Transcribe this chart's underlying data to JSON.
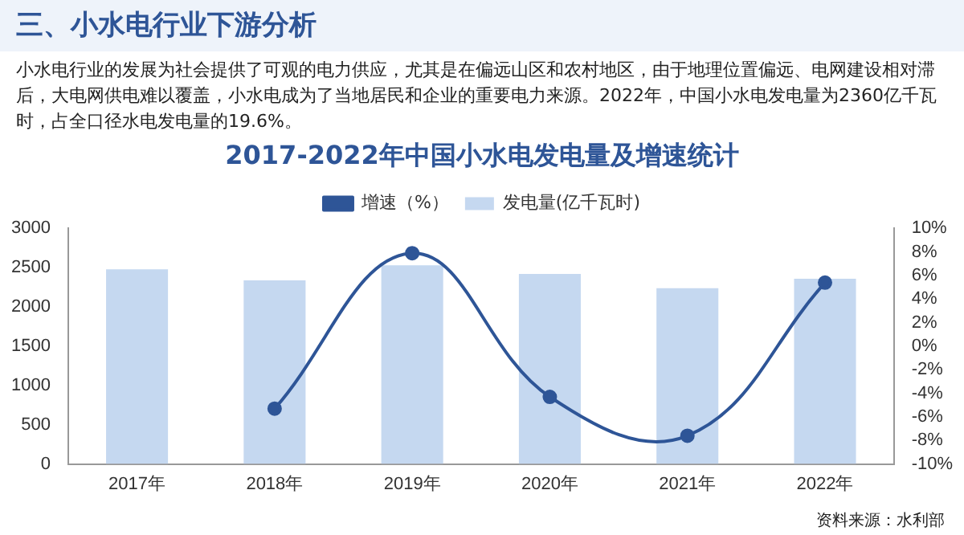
{
  "chart_data": {
    "type": "bar",
    "title": "2017-2022年中国小水电发电量及增速统计",
    "categories": [
      "2017年",
      "2018年",
      "2019年",
      "2020年",
      "2021年",
      "2022年"
    ],
    "series": [
      {
        "name": "发电量(亿千瓦时)",
        "color": "#c5d8f0",
        "values": [
          2480,
          2340,
          2530,
          2420,
          2240,
          2360
        ]
      },
      {
        "name": "增速（%）",
        "type": "line",
        "axis": "y2",
        "color": "#2e5597",
        "values": [
          null,
          -5.3,
          7.9,
          -4.3,
          -7.6,
          5.4
        ]
      }
    ],
    "ylim": [
      0,
      3000
    ],
    "yticks": [
      0,
      500,
      1000,
      1500,
      2000,
      2500,
      3000
    ],
    "y2lim": [
      -10,
      10
    ],
    "y2ticks": [
      {
        "value": -10,
        "label": "-10%"
      },
      {
        "value": -8,
        "label": "-8%"
      },
      {
        "value": -6,
        "label": "-6%"
      },
      {
        "value": -4,
        "label": "-4%"
      },
      {
        "value": -2,
        "label": "-2%"
      },
      {
        "value": 0,
        "label": "0%"
      },
      {
        "value": 2,
        "label": "2%"
      },
      {
        "value": 4,
        "label": "4%"
      },
      {
        "value": 6,
        "label": "6%"
      },
      {
        "value": 8,
        "label": "8%"
      },
      {
        "value": 10,
        "label": "10%"
      }
    ],
    "grid": false,
    "legend": "top",
    "marker": "circle",
    "line_style": "solid",
    "annotations": [
      "三、小水电行业下游分析",
      "小水电行业的发展为社会提供了可观的电力供应，尤其是在偏远山区和农村地区，由于地理位置偏远、电网建设相对滞后，大电网供电难以覆盖，小水电成为了当地居民和企业的重要电力来源。2022年，中国小水电发电量为2360亿千瓦时，占全口径水电发电量的19.6%。",
      "资料来源：水利部"
    ]
  }
}
